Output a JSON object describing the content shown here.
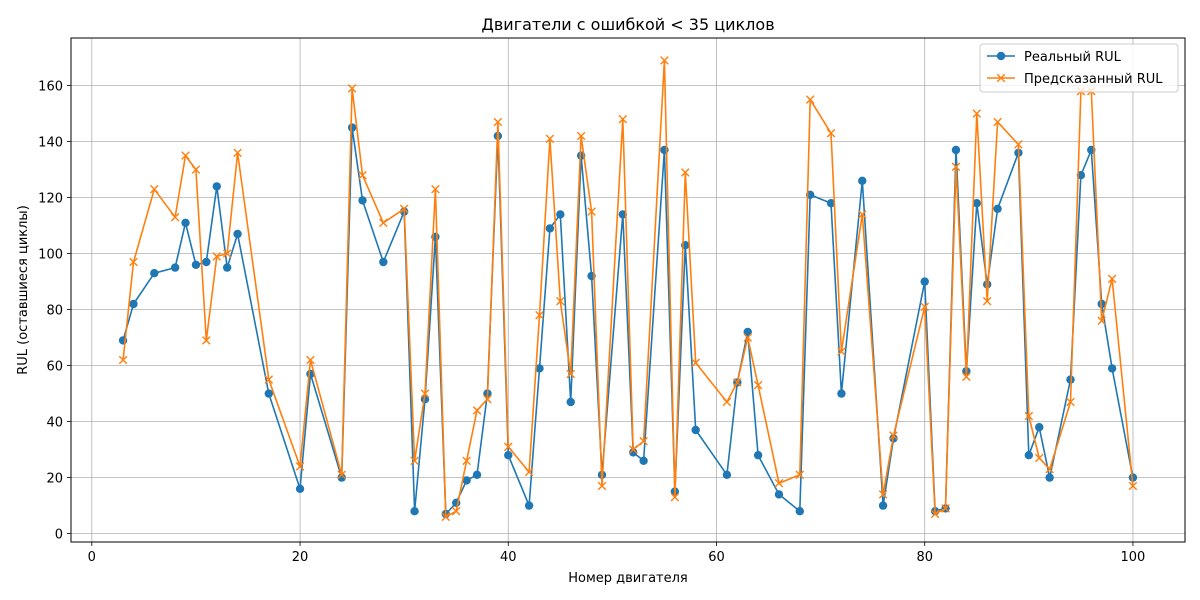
{
  "chart_data": {
    "type": "line",
    "title": "Двигатели с ошибкой < 35 циклов",
    "xlabel": "Номер двигателя",
    "ylabel": "RUL (оставшиеся циклы)",
    "xlim": [
      -2,
      105
    ],
    "ylim": [
      -3,
      177
    ],
    "x_ticks": [
      0,
      20,
      40,
      60,
      80,
      100
    ],
    "y_ticks": [
      0,
      20,
      40,
      60,
      80,
      100,
      120,
      140,
      160
    ],
    "grid": true,
    "legend_position": "upper right",
    "x": [
      3,
      4,
      6,
      8,
      9,
      10,
      11,
      12,
      13,
      14,
      17,
      20,
      21,
      24,
      25,
      26,
      28,
      30,
      31,
      32,
      33,
      34,
      35,
      36,
      37,
      38,
      39,
      40,
      42,
      43,
      44,
      45,
      46,
      47,
      48,
      49,
      51,
      52,
      53,
      55,
      56,
      57,
      58,
      61,
      62,
      63,
      64,
      66,
      68,
      69,
      71,
      72,
      74,
      76,
      77,
      80,
      81,
      82,
      83,
      84,
      85,
      86,
      87,
      89,
      90,
      91,
      92,
      94,
      95,
      96,
      97,
      98,
      100
    ],
    "series": [
      {
        "name": "Реальный RUL",
        "color": "#1f77b4",
        "marker": "circle",
        "values": [
          69,
          82,
          93,
          95,
          111,
          96,
          97,
          124,
          95,
          107,
          50,
          16,
          57,
          20,
          145,
          119,
          97,
          115,
          8,
          48,
          106,
          7,
          11,
          19,
          21,
          50,
          142,
          28,
          10,
          59,
          109,
          114,
          47,
          135,
          92,
          21,
          114,
          29,
          26,
          137,
          15,
          103,
          37,
          21,
          54,
          72,
          28,
          14,
          8,
          121,
          118,
          50,
          126,
          10,
          34,
          90,
          8,
          9,
          137,
          58,
          118,
          89,
          116,
          136,
          28,
          38,
          20,
          55,
          128,
          137,
          82,
          59,
          20
        ]
      },
      {
        "name": "Предсказанный RUL",
        "color": "#ff7f0e",
        "marker": "x",
        "values": [
          62,
          97,
          123,
          113,
          135,
          130,
          69,
          99,
          100,
          136,
          55,
          24,
          62,
          21,
          159,
          128,
          111,
          116,
          26,
          50,
          123,
          6,
          8,
          26,
          44,
          48,
          147,
          31,
          22,
          78,
          141,
          83,
          57,
          142,
          115,
          17,
          148,
          30,
          33,
          169,
          13,
          129,
          61,
          47,
          54,
          70,
          53,
          18,
          21,
          155,
          143,
          65,
          114,
          14,
          35,
          81,
          7,
          9,
          131,
          56,
          150,
          83,
          147,
          139,
          42,
          27,
          23,
          47,
          158,
          158,
          76,
          91,
          17
        ]
      }
    ]
  }
}
